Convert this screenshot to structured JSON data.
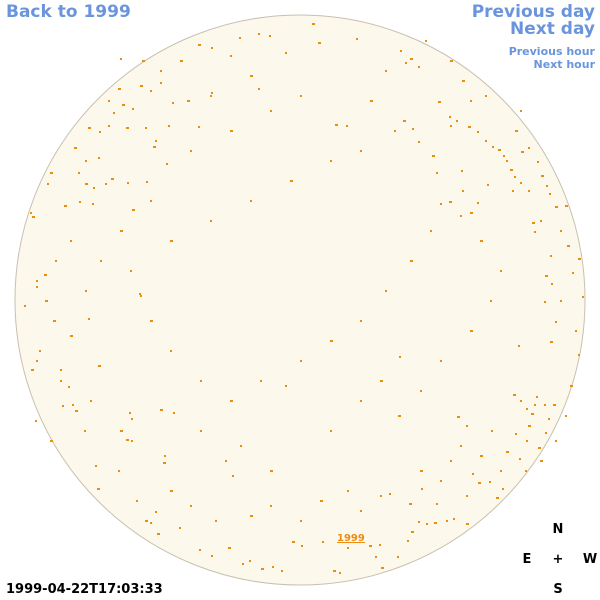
{
  "nav": {
    "back": "Back to 1999",
    "prev_day": "Previous day",
    "next_day": "Next day",
    "prev_hour": "Previous hour",
    "next_hour": "Next hour"
  },
  "year_label": "1999",
  "timestamp": "1999-04-22T17:03:33",
  "compass": {
    "n": "N",
    "e": "E",
    "center": "+",
    "w": "W",
    "s": "S"
  },
  "colors": {
    "disk_fill": "#fdf8ec",
    "disk_stroke": "#c8c0b0",
    "spot": "#ee8c10",
    "nav_text": "#6a95dd"
  }
}
